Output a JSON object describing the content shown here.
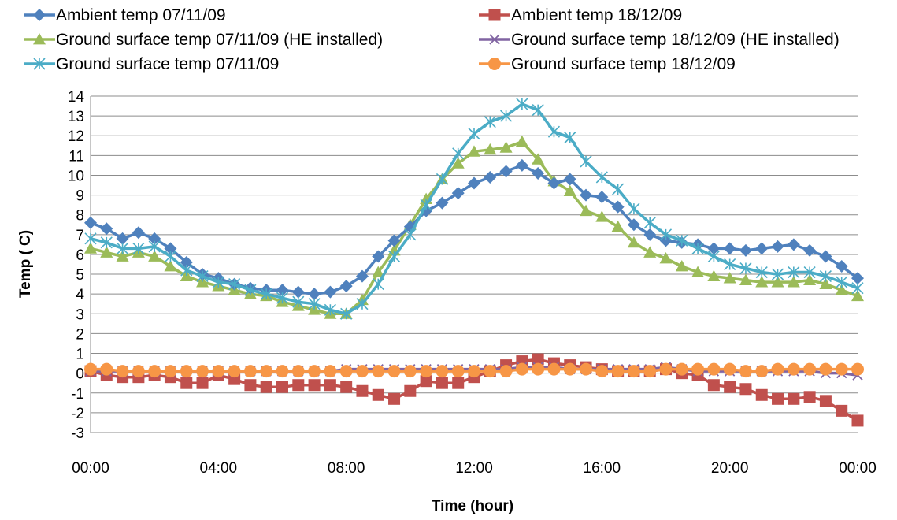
{
  "chart_data": {
    "type": "line",
    "xlabel": "Time (hour)",
    "ylabel": "Temp ( C)",
    "ylim": [
      -3,
      14
    ],
    "yticks": [
      -3,
      -2,
      -1,
      0,
      1,
      2,
      3,
      4,
      5,
      6,
      7,
      8,
      9,
      10,
      11,
      12,
      13,
      14
    ],
    "x_tick_labels": [
      "00:00",
      "04:00",
      "08:00",
      "12:00",
      "16:00",
      "20:00",
      "00:00"
    ],
    "x_tick_hours": [
      0,
      4,
      8,
      12,
      16,
      20,
      24
    ],
    "x_range_hours": [
      0,
      24
    ],
    "x_hours": [
      0,
      0.5,
      1,
      1.5,
      2,
      2.5,
      3,
      3.5,
      4,
      4.5,
      5,
      5.5,
      6,
      6.5,
      7,
      7.5,
      8,
      8.5,
      9,
      9.5,
      10,
      10.5,
      11,
      11.5,
      12,
      12.5,
      13,
      13.5,
      14,
      14.5,
      15,
      15.5,
      16,
      16.5,
      17,
      17.5,
      18,
      18.5,
      19,
      19.5,
      20,
      20.5,
      21,
      21.5,
      22,
      22.5,
      23,
      23.5,
      24
    ],
    "grid": "horizontal",
    "legend_position": "top",
    "series": [
      {
        "name": "Ambient temp 07/11/09",
        "color": "#4F81BD",
        "marker": "diamond",
        "values": [
          7.6,
          7.3,
          6.8,
          7.1,
          6.8,
          6.3,
          5.6,
          5.0,
          4.8,
          4.5,
          4.3,
          4.2,
          4.2,
          4.1,
          4.0,
          4.1,
          4.4,
          4.9,
          5.9,
          6.7,
          7.4,
          8.2,
          8.6,
          9.1,
          9.6,
          9.9,
          10.2,
          10.5,
          10.1,
          9.6,
          9.8,
          9.0,
          8.9,
          8.4,
          7.5,
          7.0,
          6.7,
          6.6,
          6.5,
          6.3,
          6.3,
          6.2,
          6.3,
          6.4,
          6.5,
          6.2,
          5.9,
          5.4,
          4.8
        ]
      },
      {
        "name": "Ambient temp 18/12/09",
        "color": "#C0504D",
        "marker": "square",
        "values": [
          0.1,
          -0.1,
          -0.2,
          -0.2,
          -0.1,
          -0.2,
          -0.5,
          -0.5,
          -0.1,
          -0.3,
          -0.6,
          -0.7,
          -0.7,
          -0.6,
          -0.6,
          -0.6,
          -0.7,
          -0.9,
          -1.1,
          -1.3,
          -0.9,
          -0.4,
          -0.5,
          -0.5,
          -0.2,
          0.1,
          0.4,
          0.6,
          0.7,
          0.5,
          0.4,
          0.3,
          0.2,
          0.1,
          0.1,
          0.1,
          0.2,
          0.0,
          -0.1,
          -0.6,
          -0.7,
          -0.8,
          -1.1,
          -1.3,
          -1.3,
          -1.2,
          -1.4,
          -1.9,
          -2.4
        ]
      },
      {
        "name": "Ground surface temp 07/11/09 (HE installed)",
        "color": "#9BBB59",
        "marker": "triangle",
        "values": [
          6.3,
          6.1,
          5.9,
          6.1,
          5.9,
          5.4,
          4.9,
          4.6,
          4.4,
          4.2,
          4.0,
          3.9,
          3.6,
          3.4,
          3.2,
          3.0,
          3.0,
          3.7,
          5.1,
          6.2,
          7.5,
          8.8,
          9.8,
          10.6,
          11.2,
          11.3,
          11.4,
          11.7,
          10.8,
          9.7,
          9.2,
          8.2,
          7.9,
          7.4,
          6.6,
          6.1,
          5.8,
          5.4,
          5.1,
          4.9,
          4.8,
          4.7,
          4.6,
          4.6,
          4.6,
          4.7,
          4.5,
          4.2,
          3.9
        ]
      },
      {
        "name": "Ground surface temp 18/12/09 (HE installed)",
        "color": "#8064A2",
        "marker": "x",
        "values": [
          0.1,
          0.1,
          0.1,
          0.1,
          0.1,
          0.1,
          0.1,
          0.1,
          0.1,
          0.1,
          0.1,
          0.1,
          0.1,
          0.1,
          0.1,
          0.1,
          0.2,
          0.2,
          0.2,
          0.2,
          0.2,
          0.2,
          0.2,
          0.2,
          0.2,
          0.2,
          0.2,
          0.3,
          0.3,
          0.3,
          0.2,
          0.2,
          0.2,
          0.2,
          0.2,
          0.2,
          0.3,
          0.2,
          0.1,
          0.1,
          0.1,
          0.1,
          0.1,
          0.1,
          0.1,
          0.1,
          0.0,
          0.0,
          -0.1
        ]
      },
      {
        "name": "Ground surface temp 07/11/09",
        "color": "#4BACC6",
        "marker": "asterisk",
        "values": [
          6.8,
          6.6,
          6.3,
          6.3,
          6.4,
          5.9,
          5.2,
          4.9,
          4.6,
          4.5,
          4.2,
          4.0,
          3.8,
          3.6,
          3.5,
          3.2,
          3.0,
          3.5,
          4.5,
          5.9,
          7.0,
          8.5,
          9.8,
          11.1,
          12.1,
          12.7,
          13.0,
          13.6,
          13.3,
          12.2,
          11.9,
          10.7,
          9.9,
          9.3,
          8.3,
          7.6,
          7.0,
          6.7,
          6.3,
          5.9,
          5.5,
          5.3,
          5.1,
          5.0,
          5.1,
          5.1,
          4.9,
          4.6,
          4.3
        ]
      },
      {
        "name": "Ground surface temp 18/12/09",
        "color": "#F79646",
        "marker": "circle",
        "values": [
          0.2,
          0.2,
          0.1,
          0.1,
          0.1,
          0.1,
          0.1,
          0.1,
          0.1,
          0.1,
          0.1,
          0.1,
          0.1,
          0.1,
          0.1,
          0.1,
          0.1,
          0.1,
          0.1,
          0.1,
          0.1,
          0.1,
          0.1,
          0.1,
          0.1,
          0.1,
          0.1,
          0.2,
          0.2,
          0.2,
          0.2,
          0.2,
          0.1,
          0.1,
          0.1,
          0.1,
          0.2,
          0.2,
          0.2,
          0.2,
          0.2,
          0.1,
          0.1,
          0.2,
          0.2,
          0.2,
          0.2,
          0.2,
          0.2
        ]
      }
    ]
  }
}
